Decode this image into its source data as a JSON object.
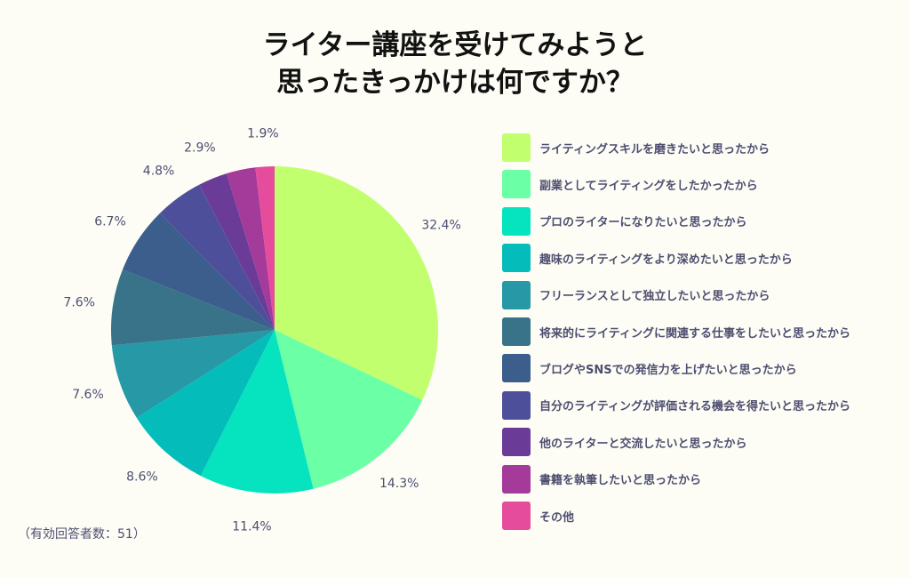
{
  "title": {
    "line1": "ライター講座を受けてみようと",
    "line2": "思ったきっかけは何ですか？"
  },
  "note": "（有効回答者数：51）",
  "chart_data": {
    "type": "pie",
    "title": "ライター講座を受けてみようと思ったきっかけは何ですか？",
    "unit": "%",
    "legend_position": "right",
    "slices": [
      {
        "label": "ライティングスキルを磨きたいと思ったから",
        "value": 32.4,
        "display": "32.4%",
        "color": "#c2ff6e"
      },
      {
        "label": "副業としてライティングをしたかったから",
        "value": 14.3,
        "display": "14.3%",
        "color": "#6bffa6"
      },
      {
        "label": "プロのライターになりたいと思ったから",
        "value": 11.4,
        "display": "11.4%",
        "color": "#06e4bf"
      },
      {
        "label": "趣味のライティングをより深めたいと思ったから",
        "value": 8.6,
        "display": "8.6%",
        "color": "#04bdbb"
      },
      {
        "label": "フリーランスとして独立したいと思ったから",
        "value": 7.6,
        "display": "7.6%",
        "color": "#2698a6"
      },
      {
        "label": "将来的にライティングに関連する仕事をしたいと思ったから",
        "value": 7.6,
        "display": "7.6%",
        "color": "#387389"
      },
      {
        "label": "ブログやSNSでの発信力を上げたいと思ったから",
        "value": 6.7,
        "display": "6.7%",
        "color": "#3c5e8c"
      },
      {
        "label": "自分のライティングが評価される機会を得たいと思ったから",
        "value": 4.8,
        "display": "4.8%",
        "color": "#4e4f9a"
      },
      {
        "label": "他のライターと交流したいと思ったから",
        "value": 2.9,
        "display": "2.9%",
        "color": "#6a3c98"
      },
      {
        "label": "書籍を執筆したいと思ったから",
        "value": 2.9,
        "display": "",
        "color": "#a43a9a"
      },
      {
        "label": "その他",
        "value": 1.9,
        "display": "1.9%",
        "color": "#e64c9c"
      }
    ]
  }
}
